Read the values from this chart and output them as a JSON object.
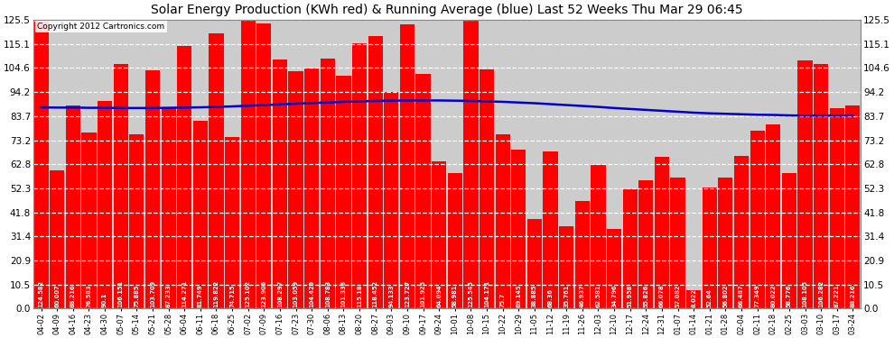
{
  "title": "Solar Energy Production (KWh red) & Running Average (blue) Last 52 Weeks Thu Mar 29 06:45",
  "copyright": "Copyright 2012 Cartronics.com",
  "bar_color": "#FF0000",
  "avg_line_color": "#0000CC",
  "background_color": "#FFFFFF",
  "plot_bg_color": "#CCCCCC",
  "grid_color": "#FFFFFF",
  "ylim": [
    0,
    125.5
  ],
  "yticks": [
    0.0,
    10.5,
    20.9,
    31.4,
    41.8,
    52.3,
    62.8,
    73.2,
    83.7,
    94.2,
    104.6,
    115.1,
    125.5
  ],
  "categories": [
    "04-02",
    "04-09",
    "04-16",
    "04-23",
    "04-30",
    "05-07",
    "05-14",
    "05-21",
    "05-28",
    "06-04",
    "06-11",
    "06-18",
    "06-25",
    "07-02",
    "07-09",
    "07-16",
    "07-23",
    "07-30",
    "08-06",
    "08-13",
    "08-20",
    "08-27",
    "09-03",
    "09-10",
    "09-17",
    "09-24",
    "10-01",
    "10-08",
    "10-15",
    "10-22",
    "10-29",
    "11-05",
    "11-12",
    "11-19",
    "11-26",
    "12-03",
    "12-10",
    "12-17",
    "12-24",
    "12-31",
    "01-07",
    "01-14",
    "01-21",
    "01-28",
    "02-04",
    "02-11",
    "02-18",
    "02-25",
    "03-03",
    "03-10",
    "03-17",
    "03-24"
  ],
  "values": [
    124.582,
    60.007,
    88.216,
    76.583,
    90.1,
    106.151,
    75.885,
    103.709,
    87.233,
    114.271,
    81.749,
    119.822,
    74.715,
    125.102,
    123.906,
    108.297,
    103.059,
    104.429,
    108.783,
    101.336,
    115.18,
    118.452,
    94.133,
    123.727,
    101.925,
    64.094,
    58.981,
    125.545,
    104.171,
    75.7,
    69.145,
    38.885,
    68.36,
    35.761,
    46.937,
    62.581,
    34.796,
    51.958,
    55.826,
    66.078,
    57.082,
    8.022,
    52.64,
    56.802,
    66.487,
    77.349,
    80.022,
    58.776,
    108.105,
    106.282,
    87.221,
    88.216
  ],
  "running_avg": [
    87.5,
    87.4,
    87.4,
    87.3,
    87.3,
    87.2,
    87.2,
    87.2,
    87.3,
    87.4,
    87.5,
    87.7,
    87.9,
    88.2,
    88.5,
    88.8,
    89.1,
    89.4,
    89.6,
    89.9,
    90.1,
    90.3,
    90.4,
    90.5,
    90.5,
    90.5,
    90.4,
    90.3,
    90.1,
    89.9,
    89.6,
    89.3,
    88.9,
    88.5,
    88.1,
    87.7,
    87.2,
    86.8,
    86.4,
    86.0,
    85.6,
    85.2,
    84.9,
    84.7,
    84.5,
    84.3,
    84.2,
    84.0,
    83.9,
    83.9,
    83.9,
    84.0
  ]
}
